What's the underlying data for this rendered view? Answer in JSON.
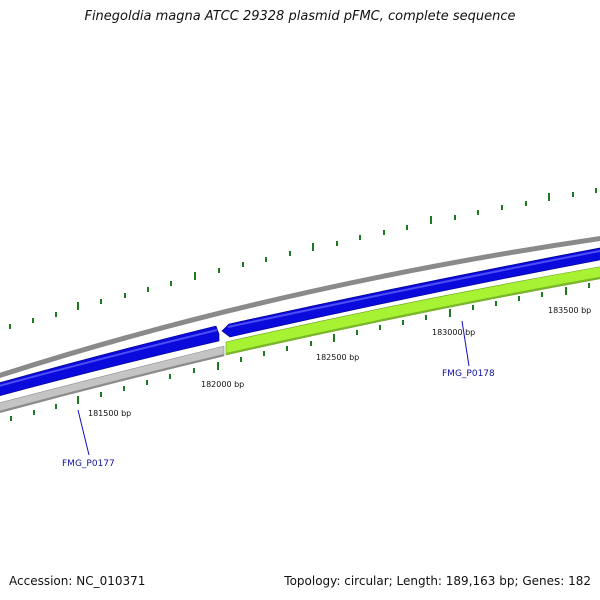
{
  "title": "Finegoldia magna ATCC 29328 plasmid pFMC, complete sequence",
  "footer": {
    "accession": "Accession: NC_010371",
    "summary": "Topology: circular; Length: 189,163 bp; Genes: 182"
  },
  "colors": {
    "backbone": "#8a8a8a",
    "forward_gene": "#0a0adc",
    "reverse_gene_gray": "#c4c4c4",
    "reverse_gene_green": "#a6f233",
    "tick": "#1e7a1e",
    "gene_label": "#1010a0"
  },
  "scale_labels": [
    "181500 bp",
    "182000 bp",
    "182500 bp",
    "183000 bp",
    "183500 bp"
  ],
  "genes": [
    {
      "name": "FMG_P0177",
      "strand": "reverse",
      "color": "reverse_gene_gray"
    },
    {
      "name": "FMG_P0178",
      "strand": "reverse",
      "color": "reverse_gene_green"
    },
    {
      "name": "",
      "strand": "forward",
      "color": "forward_gene"
    },
    {
      "name": "",
      "strand": "forward",
      "color": "forward_gene"
    }
  ]
}
